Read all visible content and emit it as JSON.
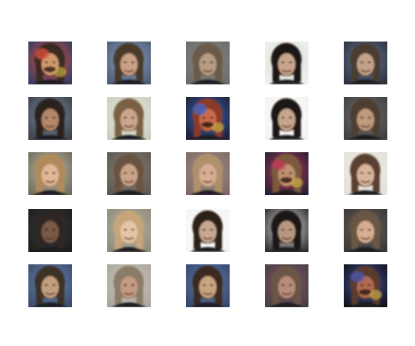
{
  "grid": {
    "rows": 5,
    "cols": 5,
    "background": "#ffffff",
    "tiles": [
      {
        "bg": "#2f3b63",
        "hair": "#3a2a22",
        "skin": "#d19a6e",
        "accent": "#e0523f",
        "style": "glitch"
      },
      {
        "bg": "#4b5a72",
        "hair": "#4a3a2c",
        "skin": "#c9a184",
        "accent": "#8fa6c9",
        "style": "face"
      },
      {
        "bg": "#6a6a66",
        "hair": "#6b5a48",
        "skin": "#b89c84",
        "accent": "#8a8a86",
        "style": "face"
      },
      {
        "bg": "#eef2ec",
        "hair": "#1c1814",
        "skin": "#c9a58a",
        "accent": "#d8e0d6",
        "style": "face"
      },
      {
        "bg": "#2c2f3a",
        "hair": "#4a3e30",
        "skin": "#c2a288",
        "accent": "#6a7c9a",
        "style": "face"
      },
      {
        "bg": "#3b3f48",
        "hair": "#2a211b",
        "skin": "#b5876a",
        "accent": "#7e8fa6",
        "style": "face"
      },
      {
        "bg": "#c9cdbf",
        "hair": "#7a6044",
        "skin": "#caa68a",
        "accent": "#e6e8dc",
        "style": "face"
      },
      {
        "bg": "#1f1d2a",
        "hair": "#8a3a2a",
        "skin": "#c96a48",
        "accent": "#3a6ad0",
        "style": "glitch"
      },
      {
        "bg": "#f2f2ee",
        "hair": "#1a1512",
        "skin": "#c8a58c",
        "accent": "#ffffff",
        "style": "face"
      },
      {
        "bg": "#3c3c40",
        "hair": "#4e3f33",
        "skin": "#c29a7c",
        "accent": "#7a7470",
        "style": "face"
      },
      {
        "bg": "#6e6a5c",
        "hair": "#b08a5a",
        "skin": "#e0b898",
        "accent": "#c0b8a0",
        "style": "face"
      },
      {
        "bg": "#5a5650",
        "hair": "#6a5240",
        "skin": "#caa488",
        "accent": "#8a8478",
        "style": "face"
      },
      {
        "bg": "#7a6a62",
        "hair": "#b0906c",
        "skin": "#d8ae94",
        "accent": "#a0908a",
        "style": "face"
      },
      {
        "bg": "#1e2034",
        "hair": "#7a5a3a",
        "skin": "#c09070",
        "accent": "#c03a5a",
        "style": "glitch"
      },
      {
        "bg": "#e2e0d8",
        "hair": "#5a4030",
        "skin": "#d8b49a",
        "accent": "#f0eee8",
        "style": "face"
      },
      {
        "bg": "#1c1c1e",
        "hair": "#2e2620",
        "skin": "#7a5a48",
        "accent": "#3a3a3c",
        "style": "face"
      },
      {
        "bg": "#8e8a7c",
        "hair": "#c6a578",
        "skin": "#e6c4a8",
        "accent": "#b8b2a0",
        "style": "face"
      },
      {
        "bg": "#f4f4f2",
        "hair": "#2a2018",
        "skin": "#c8a890",
        "accent": "#ffffff",
        "style": "face"
      },
      {
        "bg": "#2a2a2c",
        "hair": "#1e1814",
        "skin": "#b89880",
        "accent": "#e8e8e8",
        "style": "face"
      },
      {
        "bg": "#3a3634",
        "hair": "#6a5644",
        "skin": "#d6ae92",
        "accent": "#6a6260",
        "style": "face"
      },
      {
        "bg": "#3a4a6a",
        "hair": "#3e3026",
        "skin": "#c4a080",
        "accent": "#6a88b8",
        "style": "face"
      },
      {
        "bg": "#a8a49a",
        "hair": "#8a7c68",
        "skin": "#c49a80",
        "accent": "#d0ccc0",
        "style": "face"
      },
      {
        "bg": "#34466e",
        "hair": "#3a2c20",
        "skin": "#caa480",
        "accent": "#6a7ea8",
        "style": "face"
      },
      {
        "bg": "#4a3c44",
        "hair": "#6a5446",
        "skin": "#b88c78",
        "accent": "#7a5a6a",
        "style": "face"
      },
      {
        "bg": "#0e0e12",
        "hair": "#5a3a2e",
        "skin": "#b06a50",
        "accent": "#4a5ab0",
        "style": "glitch"
      }
    ]
  }
}
